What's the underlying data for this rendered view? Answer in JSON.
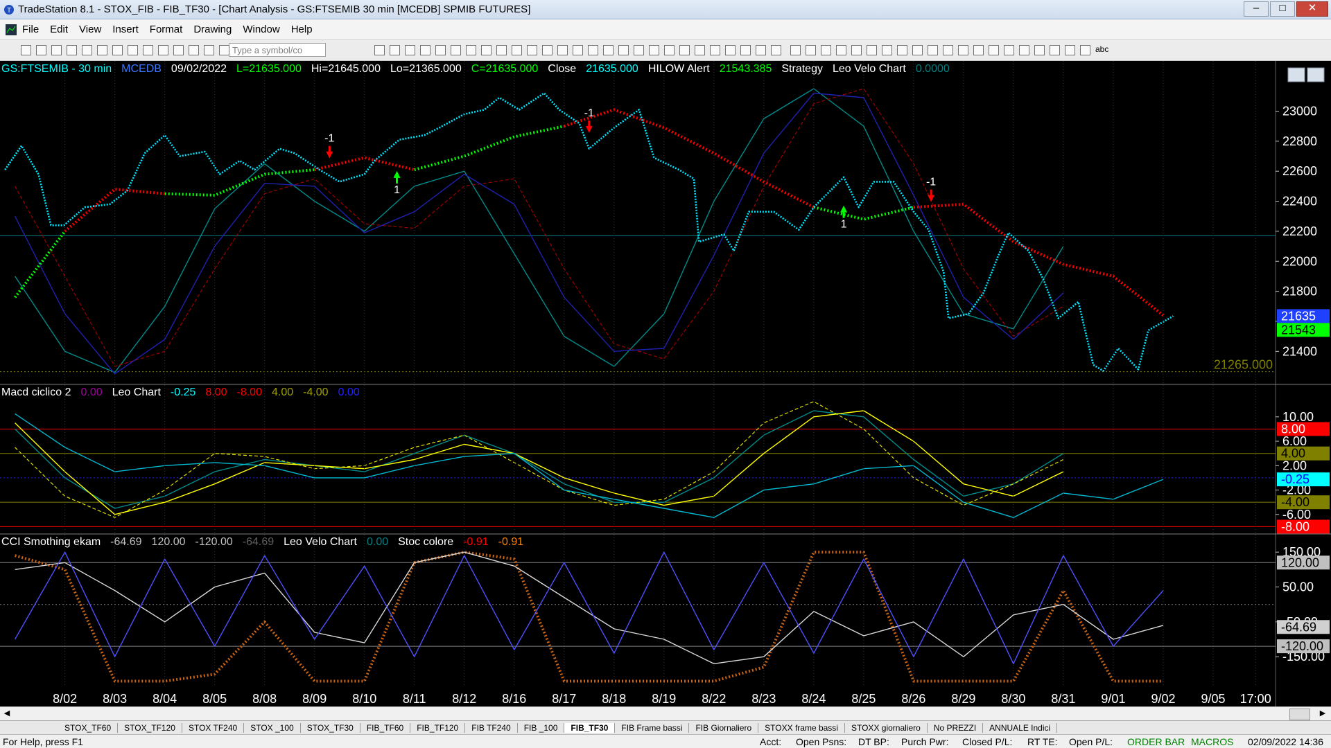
{
  "window": {
    "title": "TradeStation 8.1 - STOX_FIB - FIB_TF30 - [Chart Analysis - GS:FTSEMIB  30 min  [MCEDB] SPMIB FUTURES]"
  },
  "menu": [
    "File",
    "Edit",
    "View",
    "Insert",
    "Format",
    "Drawing",
    "Window",
    "Help"
  ],
  "toolbar": {
    "symbol_input": "Type a symbol/co",
    "text_tool": "abc"
  },
  "chart_data": [
    {
      "type": "line",
      "header": [
        {
          "text": "GS:FTSEMIB - 30 min",
          "color": "#00ffff"
        },
        {
          "text": "MCEDB",
          "color": "#3c78ff"
        },
        {
          "text": "09/02/2022",
          "color": "#ffffff"
        },
        {
          "text": "L=21635.000",
          "color": "#00ff00"
        },
        {
          "text": "Hi=21645.000",
          "color": "#ffffff"
        },
        {
          "text": "Lo=21365.000",
          "color": "#ffffff"
        },
        {
          "text": "C=21635.000",
          "color": "#00ff00"
        },
        {
          "text": "Close",
          "color": "#ffffff"
        },
        {
          "text": "21635.000",
          "color": "#00ffff"
        },
        {
          "text": "HILOW Alert",
          "color": "#ffffff"
        },
        {
          "text": "21543.385",
          "color": "#00ff00"
        },
        {
          "text": "Strategy",
          "color": "#ffffff"
        },
        {
          "text": "Leo Velo Chart",
          "color": "#ffffff"
        },
        {
          "text": "0.0000",
          "color": "#008080"
        }
      ],
      "xlim": [
        -0.3,
        25.25
      ],
      "ylim": [
        21180,
        23330
      ],
      "yticks": [
        21400,
        21600,
        21800,
        22000,
        22200,
        22400,
        22600,
        22800,
        23000
      ],
      "x": [
        0,
        1,
        2,
        3,
        4,
        5,
        6,
        7,
        8,
        9,
        10,
        11,
        12,
        13,
        14,
        15,
        16,
        17,
        18,
        19,
        20,
        21,
        22,
        23
      ],
      "series": [
        {
          "color": "#008b8b",
          "style": "solid",
          "values": [
            21900,
            21400,
            21260,
            21700,
            22350,
            22650,
            22400,
            22200,
            22500,
            22600,
            22050,
            21500,
            21300,
            21650,
            22400,
            22950,
            23150,
            22900,
            22200,
            21650,
            21550,
            22100,
            null,
            null
          ]
        },
        {
          "color": "#a00000",
          "style": "dashed",
          "values": [
            22500,
            21900,
            21300,
            21400,
            21950,
            22450,
            22550,
            22250,
            22220,
            22500,
            22550,
            21950,
            21450,
            21350,
            21800,
            22500,
            23050,
            23150,
            22650,
            21950,
            21500,
            21700,
            null,
            null
          ]
        },
        {
          "color": "#2020b0",
          "style": "solid",
          "values": [
            22300,
            21650,
            21250,
            21480,
            22100,
            22520,
            22500,
            22190,
            22330,
            22580,
            22380,
            21760,
            21400,
            21420,
            22040,
            22720,
            23120,
            23090,
            22440,
            21760,
            21480,
            21790,
            null,
            null
          ]
        },
        {
          "color": "#00ff00",
          "style": "dotted",
          "values": [
            21760,
            22200,
            null,
            22450,
            22440,
            22580,
            22610,
            null,
            22610,
            22700,
            22830,
            22900,
            null,
            null,
            null,
            null,
            22360,
            22280,
            22360,
            null,
            null,
            null,
            null,
            null
          ]
        },
        {
          "color": "#ff0000",
          "style": "dotted",
          "values": [
            null,
            22200,
            22480,
            22450,
            null,
            null,
            22610,
            22690,
            22610,
            null,
            null,
            22900,
            23010,
            22890,
            22720,
            22530,
            22360,
            null,
            22360,
            22380,
            22130,
            21980,
            21900,
            21640
          ]
        },
        {
          "color": "#00e5ff",
          "style": "points",
          "x": [
            -0.2,
            0.13,
            0.47,
            0.72,
            0.98,
            1.4,
            1.9,
            2.25,
            2.6,
            3.0,
            3.3,
            3.8,
            4.1,
            4.5,
            4.8,
            5.3,
            5.6,
            6.1,
            6.5,
            7.0,
            7.2,
            7.7,
            8.2,
            8.5,
            9.0,
            9.4,
            9.7,
            10.1,
            10.6,
            10.9,
            11.3,
            11.5,
            12.0,
            12.5,
            12.8,
            13.3,
            13.6,
            13.7,
            14.2,
            14.4,
            14.7,
            15.2,
            15.7,
            16.0,
            16.6,
            16.9,
            17.2,
            17.6,
            18.0,
            18.3,
            18.6,
            18.7,
            19.1,
            19.4,
            19.7,
            19.9,
            20.3,
            20.6,
            20.9,
            21.3,
            21.6,
            21.8,
            22.1,
            22.5,
            22.7,
            23.2
          ],
          "values": [
            22610,
            22770,
            22580,
            22240,
            22240,
            22360,
            22380,
            22470,
            22720,
            22840,
            22700,
            22730,
            22580,
            22670,
            22610,
            22750,
            22720,
            22610,
            22530,
            22580,
            22670,
            22810,
            22840,
            22890,
            22980,
            23010,
            23090,
            23010,
            23120,
            23010,
            22920,
            22750,
            22890,
            23010,
            22690,
            22610,
            22550,
            22130,
            22180,
            22070,
            22330,
            22330,
            22210,
            22360,
            22560,
            22360,
            22530,
            22530,
            22330,
            22210,
            21930,
            21620,
            21650,
            21790,
            22040,
            22190,
            22070,
            21880,
            21620,
            21730,
            21310,
            21270,
            21420,
            21280,
            21540,
            21635
          ]
        }
      ],
      "levels": [
        {
          "value": 22170,
          "color": "#008080"
        },
        {
          "value": 21265,
          "label": "21265.000",
          "color": "#808000"
        }
      ],
      "flags": [
        {
          "value": 21635,
          "label": "21635",
          "color": "#2040ff",
          "text_color": "#ffffff"
        },
        {
          "value": 21543,
          "label": "21543",
          "color": "#00ff00",
          "text_color": "#000000"
        }
      ],
      "annotations": [
        {
          "text": "-1",
          "x": 6.3,
          "y": 22750,
          "color": "#ff0000"
        },
        {
          "text": "1",
          "x": 7.65,
          "y": 22620,
          "color": "#00ff00"
        },
        {
          "text": "-1",
          "x": 11.5,
          "y": 22920,
          "color": "#ff0000"
        },
        {
          "text": "1",
          "x": 16.6,
          "y": 22390,
          "color": "#00ff00"
        },
        {
          "text": "-1",
          "x": 18.35,
          "y": 22460,
          "color": "#ff0000"
        }
      ]
    },
    {
      "type": "line",
      "header": [
        {
          "text": "Macd ciclico 2",
          "color": "#ffffff"
        },
        {
          "text": "0.00",
          "color": "#a000a0"
        },
        {
          "text": "Leo Chart",
          "color": "#ffffff"
        },
        {
          "text": "-0.25",
          "color": "#00ffff"
        },
        {
          "text": "8.00",
          "color": "#ff0000"
        },
        {
          "text": "-8.00",
          "color": "#ff0000"
        },
        {
          "text": "4.00",
          "color": "#a0a000"
        },
        {
          "text": "-4.00",
          "color": "#a0a000"
        },
        {
          "text": "0.00",
          "color": "#2020ff"
        }
      ],
      "xlim": [
        -0.3,
        25.25
      ],
      "ylim": [
        -9.2,
        15.2
      ],
      "yticks": [
        {
          "value": 10,
          "label": "10.00"
        },
        {
          "value": 6,
          "label": "6.00"
        },
        {
          "value": 2,
          "label": "2.00"
        },
        {
          "value": -2,
          "label": "-2.00"
        },
        {
          "value": -6,
          "label": "-6.00"
        }
      ],
      "x": [
        0,
        1,
        2,
        3,
        4,
        5,
        6,
        7,
        8,
        9,
        10,
        11,
        12,
        13,
        14,
        15,
        16,
        17,
        18,
        19,
        20,
        21,
        22,
        23
      ],
      "series": [
        {
          "color": "#008b8b",
          "style": "solid",
          "values": [
            8,
            0,
            -5,
            -3,
            1,
            3,
            2,
            1,
            4,
            7,
            4,
            -1,
            -4,
            -4,
            0,
            7,
            11,
            10,
            3,
            -3,
            -1,
            4,
            null,
            null
          ]
        },
        {
          "color": "#e0e000",
          "style": "dashed",
          "values": [
            5,
            -3,
            -6.5,
            -2,
            4,
            3.5,
            1.5,
            2,
            5,
            7,
            2.5,
            -2,
            -4.5,
            -3.5,
            1,
            9,
            12.5,
            8,
            0,
            -4.5,
            -1,
            3,
            null,
            null
          ]
        },
        {
          "color": "#ffff00",
          "style": "solid",
          "values": [
            9,
            1,
            -6,
            -4,
            -1,
            2.5,
            2,
            1.5,
            3,
            5.5,
            4,
            0,
            -2.5,
            -4.5,
            -3,
            4,
            10,
            11,
            6,
            -1,
            -3,
            1,
            null,
            null
          ]
        },
        {
          "color": "#00b8d0",
          "style": "solid",
          "values": [
            10.5,
            5,
            1,
            2,
            2.5,
            2,
            0,
            0,
            2,
            3.5,
            4,
            -2,
            -3.5,
            -5,
            -6.5,
            -2,
            -1,
            1.5,
            2,
            -4,
            -6.5,
            -2.5,
            -3.5,
            -0.25
          ]
        }
      ],
      "levels": [
        {
          "value": 8,
          "color": "#ff0000"
        },
        {
          "value": 4,
          "color": "#808000"
        },
        {
          "value": 0,
          "color": "#2020ff"
        },
        {
          "value": -4,
          "color": "#808000"
        },
        {
          "value": -8,
          "color": "#ff0000"
        }
      ],
      "flags": [
        {
          "value": 8,
          "label": "8.00",
          "color": "#ff0000",
          "text_color": "#ffffff"
        },
        {
          "value": 4,
          "label": "4.00",
          "color": "#808000",
          "text_color": "#000000"
        },
        {
          "value": -0.25,
          "label": "-0.25",
          "color": "#00ffff",
          "text_color": "#0000ff"
        },
        {
          "value": -4,
          "label": "-4.00",
          "color": "#808000",
          "text_color": "#000000"
        },
        {
          "value": -8,
          "label": "-8.00",
          "color": "#ff0000",
          "text_color": "#ffffff"
        }
      ]
    },
    {
      "type": "line",
      "header": [
        {
          "text": "CCI Smothing ekam",
          "color": "#ffffff"
        },
        {
          "text": "-64.69",
          "color": "#c0c0c0"
        },
        {
          "text": "120.00",
          "color": "#c0c0c0"
        },
        {
          "text": "-120.00",
          "color": "#c0c0c0"
        },
        {
          "text": "-64.69",
          "color": "#606060"
        },
        {
          "text": "Leo Velo Chart",
          "color": "#ffffff"
        },
        {
          "text": "0.00",
          "color": "#008080"
        },
        {
          "text": "Stoc colore",
          "color": "#ffffff"
        },
        {
          "text": "-0.91",
          "color": "#ff0000"
        },
        {
          "text": "-0.91",
          "color": "#ff8000"
        }
      ],
      "xlim": [
        -0.3,
        25.25
      ],
      "ylim": [
        -231,
        200
      ],
      "yticks": [
        {
          "value": 150,
          "label": "150.00"
        },
        {
          "value": 50,
          "label": "50.00"
        },
        {
          "value": -50,
          "label": "-50.00"
        },
        {
          "value": -150,
          "label": "-150.00"
        }
      ],
      "x": [
        0,
        1,
        2,
        3,
        4,
        5,
        6,
        7,
        8,
        9,
        10,
        11,
        12,
        13,
        14,
        15,
        16,
        17,
        18,
        19,
        20,
        21,
        22,
        23
      ],
      "xticks": [
        {
          "value": 1,
          "label": "8/02"
        },
        {
          "value": 2,
          "label": "8/03"
        },
        {
          "value": 3,
          "label": "8/04"
        },
        {
          "value": 4,
          "label": "8/05"
        },
        {
          "value": 5,
          "label": "8/08"
        },
        {
          "value": 6,
          "label": "8/09"
        },
        {
          "value": 7,
          "label": "8/10"
        },
        {
          "value": 8,
          "label": "8/11"
        },
        {
          "value": 9,
          "label": "8/12"
        },
        {
          "value": 10,
          "label": "8/16"
        },
        {
          "value": 11,
          "label": "8/17"
        },
        {
          "value": 12,
          "label": "8/18"
        },
        {
          "value": 13,
          "label": "8/19"
        },
        {
          "value": 14,
          "label": "8/22"
        },
        {
          "value": 15,
          "label": "8/23"
        },
        {
          "value": 16,
          "label": "8/24"
        },
        {
          "value": 17,
          "label": "8/25"
        },
        {
          "value": 18,
          "label": "8/26"
        },
        {
          "value": 19,
          "label": "8/29"
        },
        {
          "value": 20,
          "label": "8/30"
        },
        {
          "value": 21,
          "label": "8/31"
        },
        {
          "value": 22,
          "label": "9/01"
        },
        {
          "value": 23,
          "label": "9/02"
        },
        {
          "value": 24,
          "label": "9/05"
        },
        {
          "value": 24.85,
          "label": "17:00"
        }
      ],
      "series": [
        {
          "color": "#c86414",
          "style": "dotted",
          "values": [
            140,
            100,
            -220,
            -220,
            -200,
            -50,
            -220,
            -220,
            120,
            150,
            130,
            -220,
            -220,
            -220,
            -220,
            -180,
            150,
            150,
            -220,
            -220,
            -220,
            40,
            -220,
            -220
          ]
        },
        {
          "color": "#d8d8d8",
          "style": "solid",
          "values": [
            100,
            120,
            40,
            -50,
            50,
            90,
            -80,
            -110,
            120,
            150,
            110,
            20,
            -70,
            -100,
            -170,
            -150,
            -20,
            -90,
            -50,
            -150,
            -30,
            0,
            -100,
            -60
          ]
        },
        {
          "color": "#5050ff",
          "style": "solid",
          "values": [
            -100,
            150,
            -150,
            130,
            -120,
            140,
            -100,
            110,
            -150,
            140,
            -130,
            120,
            -140,
            150,
            -130,
            120,
            -140,
            130,
            -150,
            130,
            -170,
            140,
            -120,
            40
          ]
        }
      ],
      "levels": [
        {
          "value": 120,
          "color": "#808080"
        },
        {
          "value": 0,
          "color": "#808080"
        },
        {
          "value": -120,
          "color": "#808080"
        }
      ],
      "flags": [
        {
          "value": 120,
          "label": "120.00",
          "color": "#c0c0c0",
          "text_color": "#000000"
        },
        {
          "value": -64.69,
          "label": "-64.69",
          "color": "#d0d0d0",
          "text_color": "#000000"
        },
        {
          "value": -120,
          "label": "-120.00",
          "color": "#c0c0c0",
          "text_color": "#000000"
        }
      ]
    }
  ],
  "tabs": [
    "STOX_TF60",
    "STOX_TF120",
    "STOX TF240",
    "STOX _100",
    "STOX_TF30",
    "FIB_TF60",
    "FIB_TF120",
    "FIB TF240",
    "FIB _100",
    "FIB_TF30",
    "FIB Frame bassi",
    "FIB Giornaliero",
    "STOXX frame bassi",
    "STOXX giornaliero",
    "No PREZZI",
    "ANNUALE Indici"
  ],
  "status_bar": {
    "help": "For Help, press F1",
    "fields": [
      "Acct:",
      "Open Psns:",
      "DT BP:",
      "Purch Pwr:",
      "Closed P/L:",
      "RT TE:",
      "Open P/L:"
    ],
    "order_bar": "ORDER BAR",
    "macros": "MACROS",
    "datetime": "02/09/2022 14:36"
  }
}
